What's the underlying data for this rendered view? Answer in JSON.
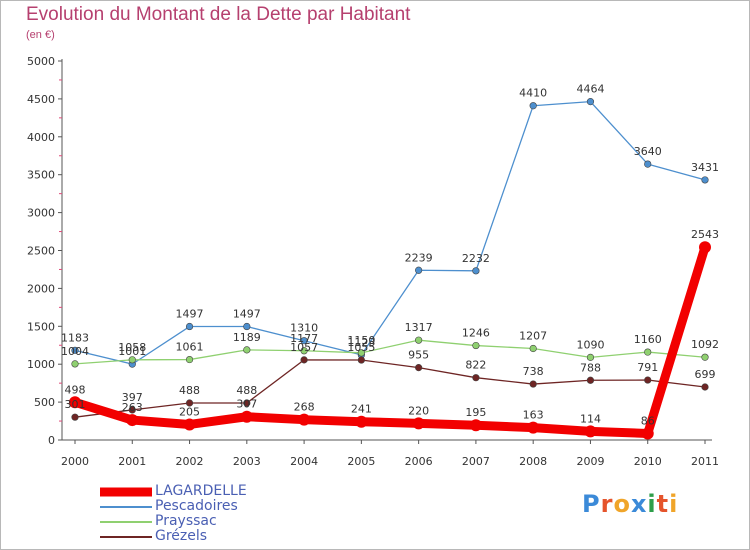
{
  "header": {
    "title": "Evolution du Montant de la Dette par Habitant",
    "subtitle": "(en €)"
  },
  "logo": {
    "text": "Proxiti",
    "letter_colors": [
      "#3b8ad8",
      "#e5542c",
      "#f0a52a",
      "#3b8ad8",
      "#2e9e4a",
      "#e5542c",
      "#f0a52a"
    ]
  },
  "chart_data": {
    "type": "line",
    "x": [
      "2000",
      "2001",
      "2002",
      "2003",
      "2004",
      "2005",
      "2006",
      "2007",
      "2008",
      "2009",
      "2010",
      "2011"
    ],
    "ylim": [
      0,
      5000
    ],
    "yticks": [
      0,
      500,
      1000,
      1500,
      2000,
      2500,
      3000,
      3500,
      4000,
      4500,
      5000
    ],
    "grid": false,
    "legend_position": "bottom-left",
    "series": [
      {
        "name": "Pescadoires",
        "color": "#4d8fce",
        "values": [
          1183,
          1001,
          1497,
          1497,
          1310,
          1123,
          2239,
          2232,
          4410,
          4464,
          3640,
          3431
        ]
      },
      {
        "name": "Prayssac",
        "color": "#8fd070",
        "values": [
          1004,
          1058,
          1061,
          1189,
          1177,
          1150,
          1317,
          1246,
          1207,
          1090,
          1160,
          1092
        ]
      },
      {
        "name": "Grézels",
        "color": "#6e2524",
        "values": [
          301,
          397,
          488,
          488,
          1057,
          1055,
          955,
          822,
          738,
          788,
          791,
          699
        ]
      },
      {
        "name": "LAGARDELLE",
        "color": "#f20000",
        "values": [
          498,
          263,
          205,
          307,
          268,
          241,
          220,
          195,
          163,
          114,
          86,
          2543
        ]
      }
    ]
  }
}
